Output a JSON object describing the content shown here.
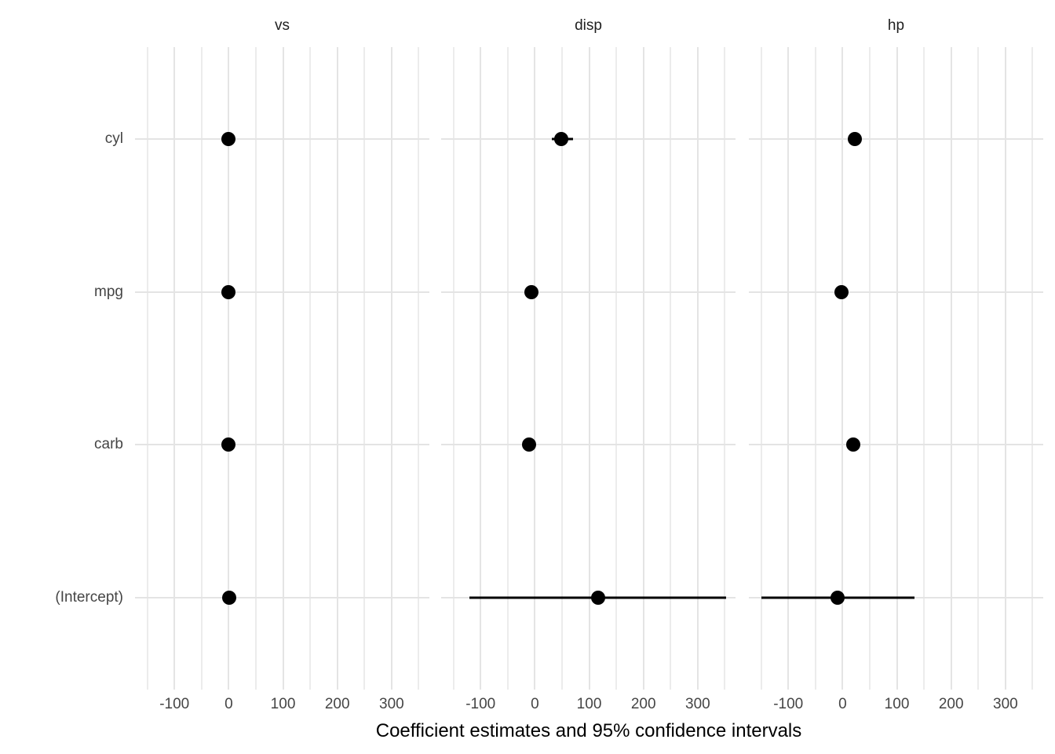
{
  "chart_data": {
    "type": "scatter",
    "subtype": "faceted-coefficient-dot-whisker",
    "title": "",
    "xlabel": "Coefficient estimates and 95% confidence intervals",
    "ylabel": "",
    "legend_position": "none",
    "grid": "vertical major+minor, horizontal major per term row",
    "terms": [
      "cyl",
      "mpg",
      "carb",
      "(Intercept)"
    ],
    "x_major_ticks": [
      -100,
      0,
      100,
      200,
      300
    ],
    "x_minor_ticks": [
      -150,
      -50,
      50,
      150,
      250,
      350
    ],
    "xlim": [
      -172.6,
      369.6
    ],
    "facets": [
      {
        "label": "vs",
        "points": [
          {
            "term": "cyl",
            "est": -0.2,
            "ci_low": -0.5,
            "ci_high": 0.1
          },
          {
            "term": "mpg",
            "est": 0.0,
            "ci_low": -0.05,
            "ci_high": 0.05
          },
          {
            "term": "carb",
            "est": -0.1,
            "ci_low": -0.3,
            "ci_high": 0.1
          },
          {
            "term": "(Intercept)",
            "est": 1.4,
            "ci_low": 0.2,
            "ci_high": 2.6
          }
        ]
      },
      {
        "label": "disp",
        "points": [
          {
            "term": "cyl",
            "est": 48,
            "ci_low": 31,
            "ci_high": 70
          },
          {
            "term": "mpg",
            "est": -6,
            "ci_low": -13,
            "ci_high": 2
          },
          {
            "term": "carb",
            "est": -10,
            "ci_low": -21,
            "ci_high": 1
          },
          {
            "term": "(Intercept)",
            "est": 116,
            "ci_low": -121,
            "ci_high": 352
          }
        ]
      },
      {
        "label": "hp",
        "points": [
          {
            "term": "cyl",
            "est": 22,
            "ci_low": 11,
            "ci_high": 33
          },
          {
            "term": "mpg",
            "est": -2,
            "ci_low": -9,
            "ci_high": 6
          },
          {
            "term": "carb",
            "est": 19,
            "ci_low": 9,
            "ci_high": 29
          },
          {
            "term": "(Intercept)",
            "est": -9,
            "ci_low": -149,
            "ci_high": 133
          }
        ]
      }
    ],
    "colors": {
      "point": "#000000",
      "ci_bar": "#000000",
      "grid_major": "#e4e4e4",
      "grid_minor": "#ececec",
      "tick_text": "#454545",
      "strip_text": "#1f1f1f",
      "title_text": "#000000",
      "background": "#ffffff"
    }
  }
}
